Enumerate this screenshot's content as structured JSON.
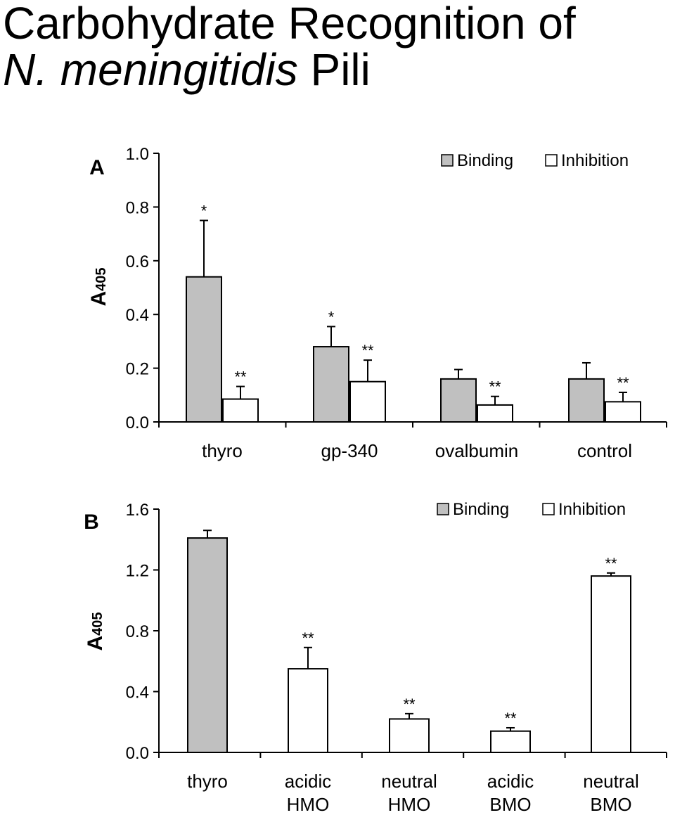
{
  "title": {
    "line1": "Carbohydrate Recognition of",
    "line2_italic": "N. meningitidis",
    "line2_rest": "Pili"
  },
  "chart_data": [
    {
      "panel": "A",
      "type": "bar",
      "ylabel": "A",
      "ylabel_sub": "405",
      "ylim": [
        0,
        1.0
      ],
      "yticks": [
        "0.0",
        "0.2",
        "0.4",
        "0.6",
        "0.8",
        "1.0"
      ],
      "categories": [
        "thyro",
        "gp-340",
        "ovalbumin",
        "control"
      ],
      "legend": [
        "Binding",
        "Inhibition"
      ],
      "legend_position": "top-right",
      "series": [
        {
          "name": "Binding",
          "color": "#c0c0c0",
          "values": [
            0.54,
            0.28,
            0.16,
            0.16
          ],
          "errors": [
            0.21,
            0.075,
            0.035,
            0.06
          ],
          "marks": [
            "*",
            "*",
            "",
            ""
          ]
        },
        {
          "name": "Inhibition",
          "color": "#ffffff",
          "values": [
            0.085,
            0.15,
            0.063,
            0.075
          ],
          "errors": [
            0.047,
            0.08,
            0.032,
            0.035
          ],
          "marks": [
            "**",
            "**",
            "**",
            "**"
          ]
        }
      ]
    },
    {
      "panel": "B",
      "type": "bar",
      "ylabel": "A",
      "ylabel_sub": "405",
      "ylim": [
        0,
        1.6
      ],
      "yticks": [
        "0.0",
        "0.4",
        "0.8",
        "1.2",
        "1.6"
      ],
      "categories": [
        [
          "thyro"
        ],
        [
          "acidic",
          "HMO"
        ],
        [
          "neutral",
          "HMO"
        ],
        [
          "acidic",
          "BMO"
        ],
        [
          "neutral",
          "BMO"
        ]
      ],
      "legend": [
        "Binding",
        "Inhibition"
      ],
      "legend_position": "top-right",
      "bars": [
        {
          "series": "Binding",
          "value": 1.41,
          "error": 0.05,
          "mark": ""
        },
        {
          "series": "Inhibition",
          "value": 0.55,
          "error": 0.14,
          "mark": "**"
        },
        {
          "series": "Inhibition",
          "value": 0.22,
          "error": 0.035,
          "mark": "**"
        },
        {
          "series": "Inhibition",
          "value": 0.14,
          "error": 0.022,
          "mark": "**"
        },
        {
          "series": "Inhibition",
          "value": 1.16,
          "error": 0.02,
          "mark": "**"
        }
      ],
      "colors": {
        "Binding": "#c0c0c0",
        "Inhibition": "#ffffff"
      }
    }
  ]
}
